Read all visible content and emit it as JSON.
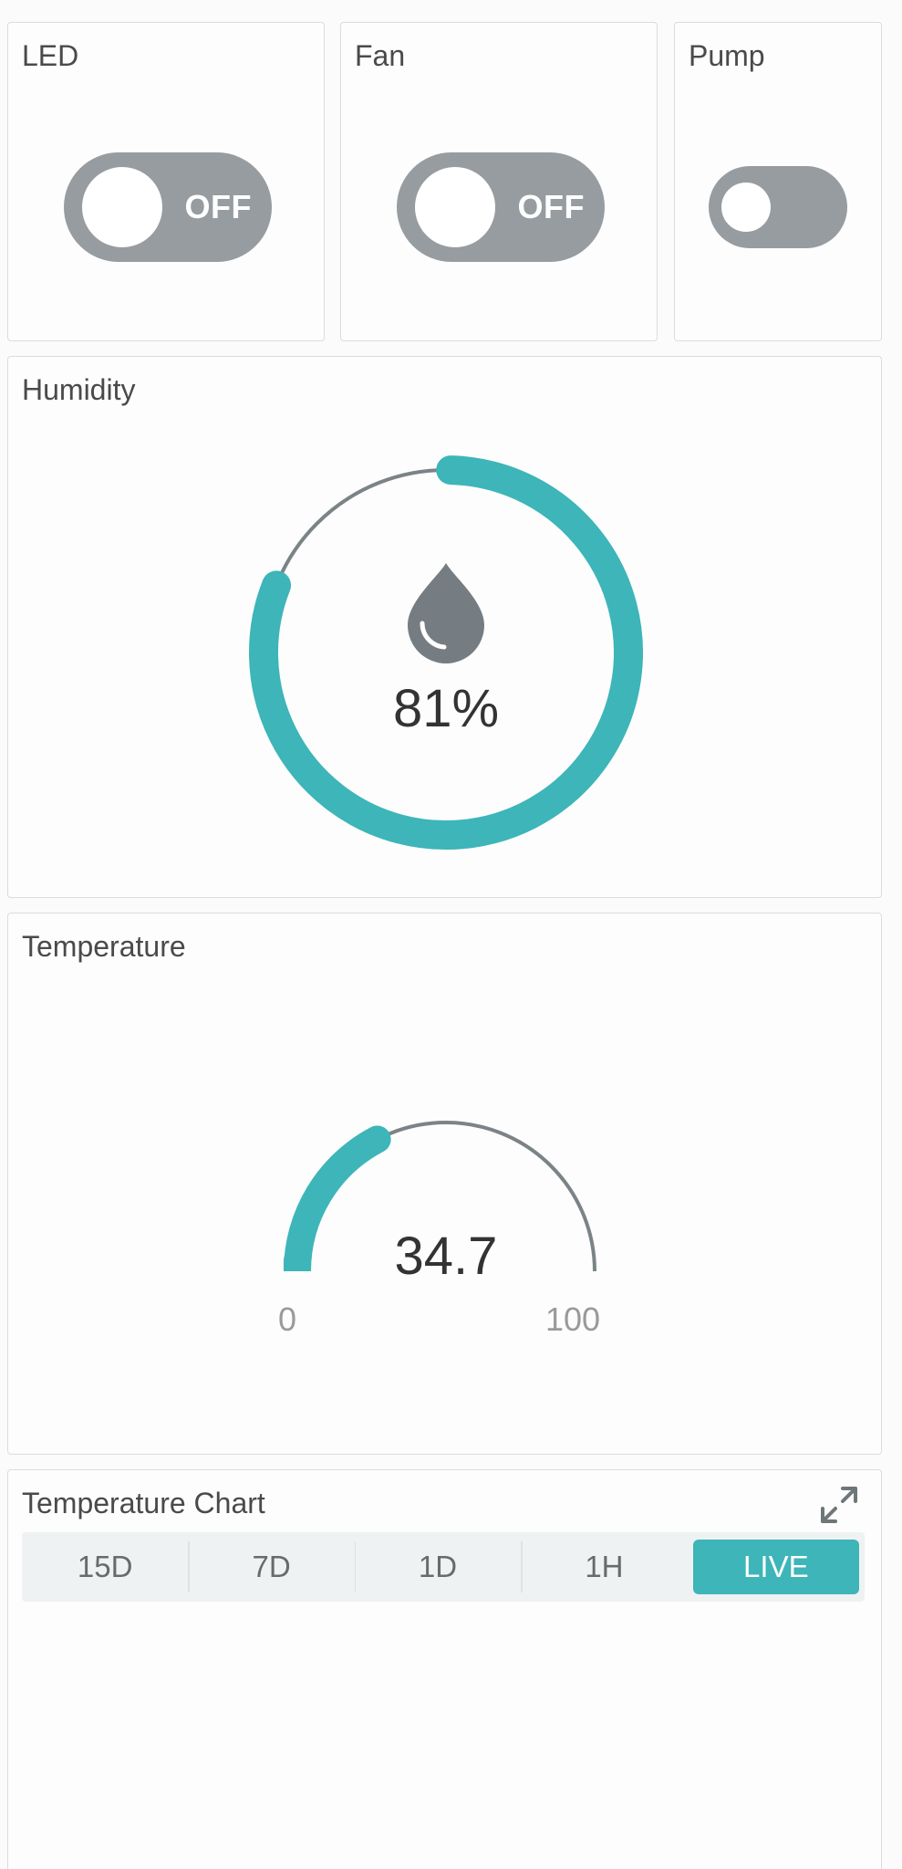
{
  "switches": {
    "led": {
      "title": "LED",
      "state": "OFF"
    },
    "fan": {
      "title": "Fan",
      "state": "OFF"
    },
    "pump": {
      "title": "Pump",
      "state": "off"
    }
  },
  "humidity": {
    "title": "Humidity",
    "value": 81,
    "value_text": "81%",
    "icon": "water-drop-icon"
  },
  "temperature": {
    "title": "Temperature",
    "value": 34.7,
    "value_text": "34.7",
    "min": 0,
    "max": 100,
    "min_label": "0",
    "max_label": "100"
  },
  "temperature_chart": {
    "title": "Temperature Chart",
    "expand_icon": "expand-icon",
    "ranges": [
      "15D",
      "7D",
      "1D",
      "1H",
      "LIVE"
    ],
    "active_range": "LIVE"
  },
  "colors": {
    "accent": "#3db5b9",
    "track": "#7c8386",
    "switch_off": "#969c9f"
  }
}
